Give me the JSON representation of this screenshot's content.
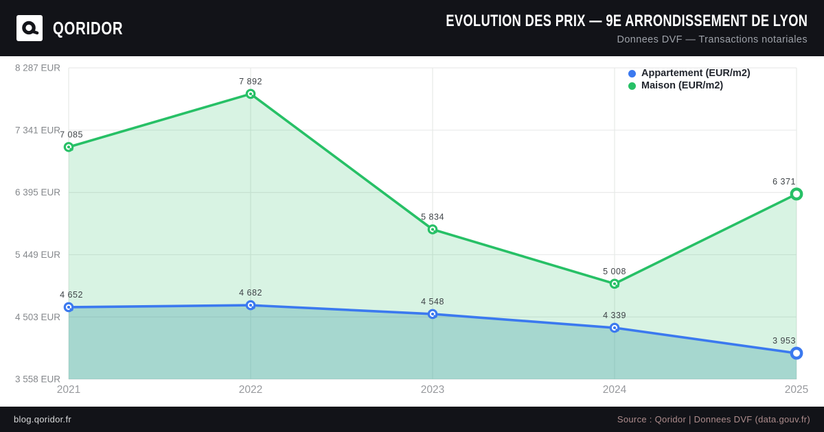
{
  "header": {
    "brand": "QORIDOR",
    "title": "EVOLUTION DES PRIX — 9E ARRONDISSEMENT DE LYON",
    "subtitle": "Donnees DVF — Transactions notariales"
  },
  "footer": {
    "left": "blog.qoridor.fr",
    "right": "Source : Qoridor | Donnees DVF (data.gouv.fr)"
  },
  "icons": {
    "logo": "qoridor-q-logo"
  },
  "colors": {
    "header_bg": "#121318",
    "appartement": "#3b79ef",
    "maison": "#27c066",
    "appartement_fill": "rgba(70,160,170,0.34)",
    "maison_fill": "rgba(39,190,102,0.18)",
    "gridline": "#e9eaea"
  },
  "chart_data": {
    "type": "line",
    "title": "Evolution des prix — 9e arrondissement de Lyon",
    "xlabel": "",
    "ylabel": "EUR",
    "x": [
      "2021",
      "2022",
      "2023",
      "2024",
      "2025"
    ],
    "series": [
      {
        "name": "Appartement (EUR/m2)",
        "color": "#3b79ef",
        "fill": "rgba(70,160,170,0.34)",
        "values": [
          4652,
          4682,
          4548,
          4339,
          3953
        ],
        "point_labels": [
          "4 652",
          "4 682",
          "4 548",
          "4 339",
          "3 953"
        ]
      },
      {
        "name": "Maison (EUR/m2)",
        "color": "#27c066",
        "fill": "rgba(39,190,102,0.18)",
        "values": [
          7085,
          7892,
          5834,
          5008,
          6371
        ],
        "point_labels": [
          "7 085",
          "7 892",
          "5 834",
          "5 008",
          "6 371"
        ]
      }
    ],
    "y_ticks": [
      {
        "value": 8287,
        "label": "8 287 EUR"
      },
      {
        "value": 7341,
        "label": "7 341 EUR"
      },
      {
        "value": 6395,
        "label": "6 395 EUR"
      },
      {
        "value": 5449,
        "label": "5 449 EUR"
      },
      {
        "value": 4503,
        "label": "4 503 EUR"
      },
      {
        "value": 3558,
        "label": "3 558 EUR"
      }
    ],
    "ylim": [
      3558,
      8287
    ],
    "grid": true,
    "legend_position": "top-right"
  }
}
